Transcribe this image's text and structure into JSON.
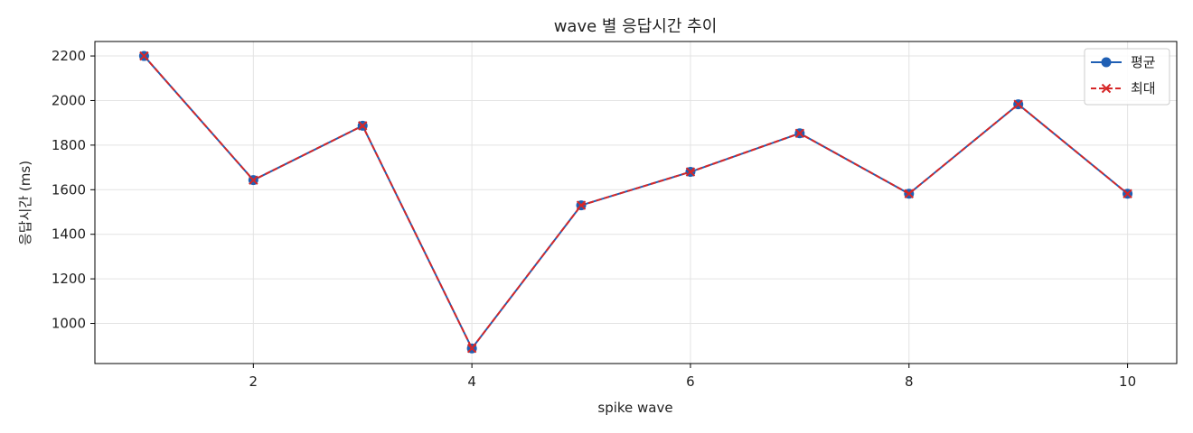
{
  "chart_data": {
    "type": "line",
    "title": "wave 별 응답시간 추이",
    "xlabel": "spike wave",
    "ylabel": "응답시간 (ms)",
    "x": [
      1,
      2,
      3,
      4,
      5,
      6,
      7,
      8,
      9,
      10
    ],
    "xlim": [
      0.55,
      10.45
    ],
    "ylim": [
      820,
      2265
    ],
    "xticks": [
      2,
      4,
      6,
      8,
      10
    ],
    "yticks": [
      1000,
      1200,
      1400,
      1600,
      1800,
      2000,
      2200
    ],
    "grid": true,
    "legend_position": "top-right",
    "series": [
      {
        "name": "평균",
        "values": [
          2200,
          1643,
          1887,
          888,
          1530,
          1680,
          1853,
          1582,
          1983,
          1582
        ],
        "color": "#1f5fb4",
        "line_style": "solid",
        "marker": "circle"
      },
      {
        "name": "최대",
        "values": [
          2200,
          1643,
          1887,
          888,
          1530,
          1680,
          1853,
          1582,
          1983,
          1582
        ],
        "color": "#d62728",
        "line_style": "dashed",
        "marker": "x"
      }
    ]
  }
}
